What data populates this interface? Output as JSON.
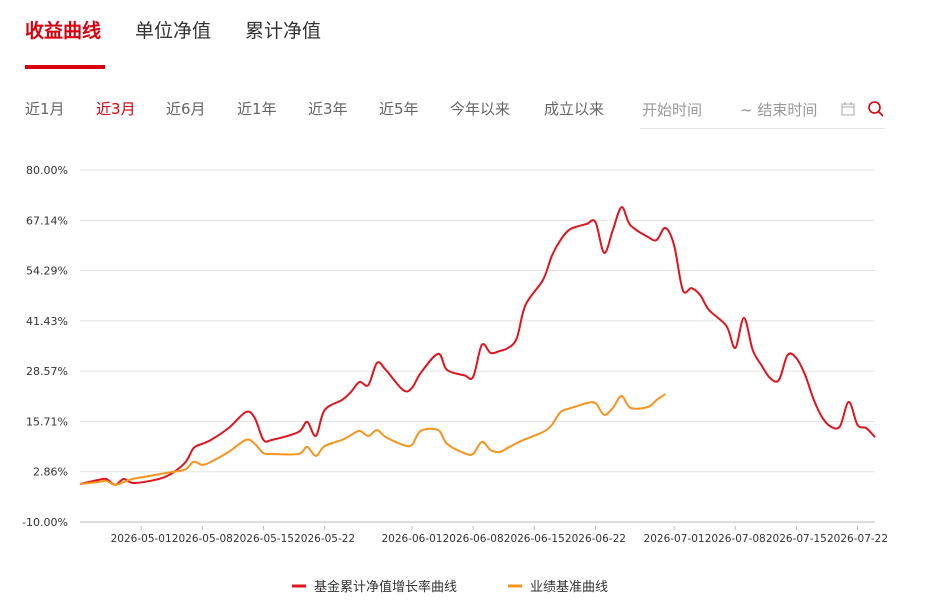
{
  "tabs": [
    "收益曲线",
    "单位净值",
    "累计净值"
  ],
  "periods": [
    "近1月",
    "近3月",
    "近6月",
    "近1年",
    "近3年",
    "近5年",
    "今年以来",
    "成立以来"
  ],
  "date_range": {
    "start": "开始时间",
    "end": "~ 结束时间"
  },
  "chart_data": {
    "type": "line",
    "x": [
      "2026-04-24",
      "2026-04-26",
      "2026-04-27",
      "2026-04-28",
      "2026-04-29",
      "2026-04-30",
      "2026-05-02",
      "2026-05-04",
      "2026-05-06",
      "2026-05-07",
      "2026-05-08",
      "2026-05-09",
      "2026-05-11",
      "2026-05-13",
      "2026-05-14",
      "2026-05-15",
      "2026-05-16",
      "2026-05-19",
      "2026-05-20",
      "2026-05-21",
      "2026-05-22",
      "2026-05-24",
      "2026-05-25",
      "2026-05-26",
      "2026-05-27",
      "2026-05-28",
      "2026-05-29",
      "2026-05-31",
      "2026-06-01",
      "2026-06-02",
      "2026-06-04",
      "2026-06-05",
      "2026-06-07",
      "2026-06-08",
      "2026-06-09",
      "2026-06-10",
      "2026-06-11",
      "2026-06-12",
      "2026-06-13",
      "2026-06-14",
      "2026-06-16",
      "2026-06-17",
      "2026-06-18",
      "2026-06-19",
      "2026-06-20",
      "2026-06-21",
      "2026-06-22",
      "2026-06-23",
      "2026-06-24",
      "2026-06-25",
      "2026-06-26",
      "2026-06-28",
      "2026-06-29",
      "2026-06-30",
      "2026-07-01",
      "2026-07-02",
      "2026-07-03",
      "2026-07-04",
      "2026-07-05",
      "2026-07-07",
      "2026-07-08",
      "2026-07-09",
      "2026-07-10",
      "2026-07-11",
      "2026-07-12",
      "2026-07-13",
      "2026-07-14",
      "2026-07-15",
      "2026-07-16",
      "2026-07-17",
      "2026-07-18",
      "2026-07-19",
      "2026-07-20",
      "2026-07-21",
      "2026-07-22",
      "2026-07-23",
      "2026-07-24"
    ],
    "series": [
      {
        "name": "基金累计净值增长率曲线",
        "color": "#e0141e",
        "values": [
          -0.3,
          0.7,
          1.0,
          -0.5,
          1.0,
          0.0,
          0.5,
          1.8,
          5.1,
          8.9,
          10.0,
          11.0,
          14.0,
          18.1,
          16.6,
          11.0,
          11.0,
          13.0,
          15.6,
          12.0,
          18.6,
          21.2,
          23.2,
          25.8,
          25.0,
          30.7,
          28.9,
          23.7,
          24.3,
          28.1,
          33.0,
          28.9,
          27.5,
          27.1,
          35.3,
          33.2,
          33.7,
          34.5,
          37.0,
          45.5,
          51.9,
          58.0,
          62.1,
          64.7,
          65.6,
          66.2,
          66.7,
          58.8,
          64.7,
          70.5,
          65.9,
          62.9,
          62.1,
          65.2,
          60.8,
          49.3,
          49.8,
          48.0,
          44.2,
          40.1,
          34.5,
          42.2,
          34.0,
          30.1,
          26.8,
          26.3,
          32.7,
          31.9,
          27.6,
          21.2,
          16.6,
          14.3,
          14.5,
          20.7,
          14.8,
          14.0,
          11.7
        ]
      },
      {
        "name": "业绩基准曲线",
        "color": "#f7941d",
        "values": [
          -0.3,
          0.2,
          0.5,
          -0.5,
          0.2,
          1.0,
          1.8,
          2.6,
          3.4,
          5.4,
          4.6,
          5.4,
          7.9,
          11.0,
          10.0,
          7.6,
          7.4,
          7.4,
          9.2,
          6.9,
          9.4,
          11.0,
          12.2,
          13.3,
          12.0,
          13.5,
          11.7,
          9.7,
          9.7,
          13.3,
          13.5,
          10.0,
          7.6,
          7.4,
          10.5,
          8.4,
          7.9,
          9.0,
          10.2,
          11.2,
          13.0,
          14.8,
          18.1,
          19.0,
          19.7,
          20.4,
          20.4,
          17.4,
          19.2,
          22.2,
          19.2,
          19.4,
          21.2,
          22.7,
          null,
          null,
          null,
          null,
          null,
          null,
          null,
          null,
          null,
          null,
          null,
          null,
          null,
          null,
          null,
          null,
          null,
          null,
          null,
          null,
          null,
          null,
          null
        ]
      }
    ],
    "xlim": [
      "2026-04-24",
      "2026-07-24"
    ],
    "xticks": [
      "2026-05-01",
      "2026-05-08",
      "2026-05-15",
      "2026-05-22",
      "2026-06-01",
      "2026-06-08",
      "2026-06-15",
      "2026-06-22",
      "2026-07-01",
      "2026-07-08",
      "2026-07-15",
      "2026-07-22"
    ],
    "ylim": [
      -10,
      80
    ],
    "yticks": [
      {
        "value": -10,
        "label": "-10.00%"
      },
      {
        "value": 2.86,
        "label": "2.86%"
      },
      {
        "value": 15.71,
        "label": "15.71%"
      },
      {
        "value": 28.57,
        "label": "28.57%"
      },
      {
        "value": 41.43,
        "label": "41.43%"
      },
      {
        "value": 54.29,
        "label": "54.29%"
      },
      {
        "value": 67.14,
        "label": "67.14%"
      },
      {
        "value": 80,
        "label": "80.00%"
      }
    ],
    "grid": true
  }
}
